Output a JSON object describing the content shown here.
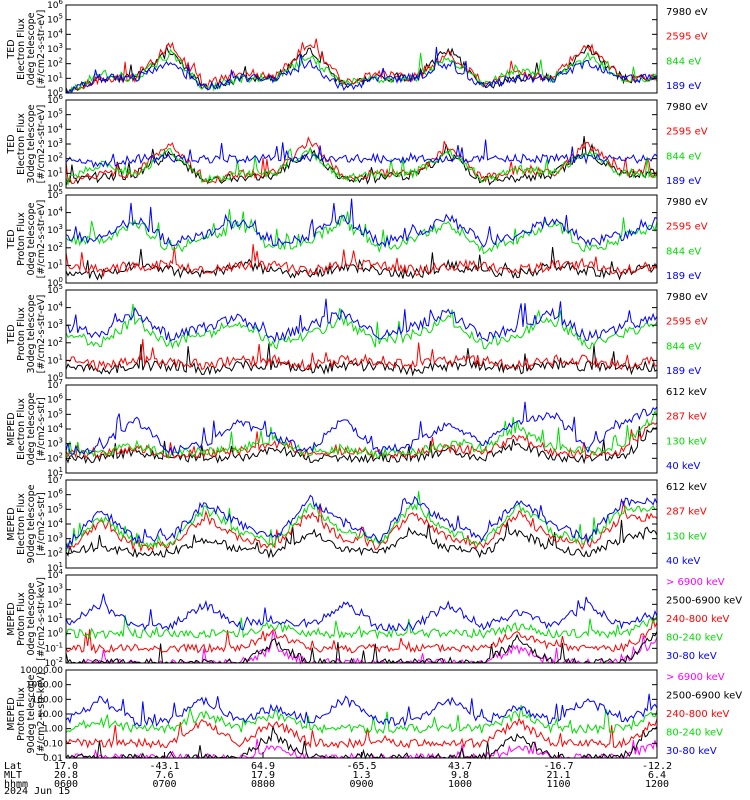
{
  "footer": {
    "date": "2024 Jun 15",
    "row_labels": [
      "Lat",
      "MLT",
      "hhmm"
    ]
  },
  "chart_data": [
    {
      "type": "line",
      "ylabel": [
        "TED",
        "Electron Flux",
        "0deg telescope",
        "[#/cm2-s-str-eV]"
      ],
      "yscale": "log",
      "ylim": [
        1,
        1000000
      ],
      "grid": false,
      "legend_placement": "right",
      "y_ticks": [
        "10^0",
        "10^1",
        "10^2",
        "10^3",
        "10^4",
        "10^5",
        "10^6"
      ],
      "series": [
        {
          "name": "7980 eV",
          "color": "#000000",
          "values": [
            1,
            10,
            10,
            800,
            2,
            10,
            10,
            1000,
            3,
            10,
            10,
            1000,
            3,
            10,
            10,
            1000,
            10,
            10
          ]
        },
        {
          "name": "2595 eV",
          "color": "#ff0000",
          "values": [
            1,
            10,
            10,
            2000,
            3,
            30,
            10,
            3000,
            5,
            20,
            10,
            500,
            5,
            30,
            10,
            2000,
            10,
            10
          ]
        },
        {
          "name": "844 eV",
          "color": "#00dd00",
          "values": [
            1,
            20,
            10,
            500,
            2,
            10,
            10,
            300,
            4,
            10,
            10,
            200,
            5,
            30,
            10,
            300,
            10,
            10
          ]
        },
        {
          "name": "189 eV",
          "color": "#0000ff",
          "values": [
            1,
            10,
            10,
            100,
            2,
            10,
            10,
            100,
            2,
            10,
            10,
            100,
            3,
            10,
            10,
            100,
            10,
            10
          ]
        }
      ]
    },
    {
      "type": "line",
      "ylabel": [
        "TED",
        "Electron Flux",
        "30deg telescope",
        "[#/cm2-s-str-eV]"
      ],
      "yscale": "log",
      "ylim": [
        1,
        1000000
      ],
      "grid": false,
      "legend_placement": "right",
      "y_ticks": [
        "10^0",
        "10^1",
        "10^2",
        "10^3",
        "10^4",
        "10^5",
        "10^6"
      ],
      "series": [
        {
          "name": "7980 eV",
          "color": "#000000",
          "values": [
            3,
            5,
            8,
            200,
            3,
            5,
            8,
            300,
            3,
            5,
            8,
            200,
            3,
            5,
            8,
            300,
            10,
            10
          ]
        },
        {
          "name": "2595 eV",
          "color": "#ff0000",
          "values": [
            3,
            10,
            10,
            1000,
            3,
            10,
            10,
            2000,
            4,
            10,
            10,
            500,
            4,
            20,
            10,
            1000,
            10,
            10
          ]
        },
        {
          "name": "844 eV",
          "color": "#00dd00",
          "values": [
            3,
            50,
            10,
            300,
            3,
            10,
            10,
            300,
            4,
            10,
            10,
            300,
            4,
            20,
            10,
            300,
            10,
            10
          ]
        },
        {
          "name": "189 eV",
          "color": "#0000ff",
          "values": [
            100,
            30,
            100,
            100,
            100,
            100,
            100,
            100,
            100,
            100,
            100,
            100,
            100,
            100,
            100,
            100,
            100,
            100
          ]
        }
      ]
    },
    {
      "type": "line",
      "ylabel": [
        "TED",
        "Proton Flux",
        "0deg telescope",
        "[#/cm2-s-str-eV]"
      ],
      "yscale": "log",
      "ylim": [
        1,
        100000
      ],
      "grid": false,
      "legend_placement": "right",
      "y_ticks": [
        "10^0",
        "10^1",
        "10^2",
        "10^3",
        "10^4",
        "10^5"
      ],
      "series": [
        {
          "name": "7980 eV",
          "color": "#000000",
          "values": [
            5,
            3,
            10,
            5,
            3,
            10,
            5,
            3,
            10,
            5,
            3,
            10,
            5,
            3,
            10,
            5,
            3,
            10
          ]
        },
        {
          "name": "2595 eV",
          "color": "#ff0000",
          "values": [
            10,
            5,
            10,
            10,
            5,
            10,
            10,
            5,
            10,
            10,
            5,
            10,
            10,
            5,
            10,
            10,
            5,
            10
          ]
        },
        {
          "name": "844 eV",
          "color": "#00dd00",
          "values": [
            300,
            200,
            3000,
            80,
            300,
            2000,
            80,
            300,
            3000,
            80,
            300,
            3000,
            80,
            300,
            3000,
            80,
            300,
            2000
          ]
        },
        {
          "name": "189 eV",
          "color": "#0000ff",
          "values": [
            500,
            300,
            5000,
            200,
            500,
            3000,
            200,
            500,
            5000,
            200,
            500,
            5000,
            200,
            500,
            5000,
            200,
            500,
            3000
          ]
        }
      ]
    },
    {
      "type": "line",
      "ylabel": [
        "TED",
        "Proton Flux",
        "30deg telescope",
        "[#/cm2-s-str-eV]"
      ],
      "yscale": "log",
      "ylim": [
        1,
        100000
      ],
      "grid": false,
      "legend_placement": "right",
      "y_ticks": [
        "10^0",
        "10^1",
        "10^2",
        "10^3",
        "10^4",
        "10^5"
      ],
      "series": [
        {
          "name": "7980 eV",
          "color": "#000000",
          "values": [
            5,
            3,
            5,
            5,
            3,
            5,
            5,
            3,
            5,
            5,
            3,
            5,
            5,
            3,
            5,
            5,
            3,
            5
          ]
        },
        {
          "name": "2595 eV",
          "color": "#ff0000",
          "values": [
            10,
            5,
            10,
            10,
            5,
            10,
            10,
            5,
            10,
            10,
            5,
            10,
            10,
            5,
            10,
            10,
            5,
            10
          ]
        },
        {
          "name": "844 eV",
          "color": "#00dd00",
          "values": [
            300,
            100,
            2000,
            80,
            300,
            1500,
            80,
            300,
            2000,
            80,
            300,
            2000,
            80,
            300,
            2000,
            80,
            300,
            1500
          ]
        },
        {
          "name": "189 eV",
          "color": "#0000ff",
          "values": [
            800,
            300,
            5000,
            200,
            800,
            3000,
            200,
            800,
            5000,
            200,
            800,
            5000,
            200,
            800,
            5000,
            200,
            800,
            3000
          ]
        }
      ]
    },
    {
      "type": "line",
      "ylabel": [
        "MEPED",
        "Electron Flux",
        "0deg telescope",
        "[#/cm2-s-str]"
      ],
      "yscale": "log",
      "ylim": [
        10,
        10000000
      ],
      "grid": false,
      "legend_placement": "right",
      "y_ticks": [
        "10^1",
        "10^2",
        "10^3",
        "10^4",
        "10^5",
        "10^6",
        "10^7"
      ],
      "series": [
        {
          "name": "612 keV",
          "color": "#000000",
          "values": [
            100,
            100,
            300,
            100,
            100,
            100,
            500,
            100,
            100,
            100,
            100,
            300,
            100,
            1000,
            100,
            100,
            100,
            10000
          ]
        },
        {
          "name": "287 keV",
          "color": "#ff0000",
          "values": [
            200,
            200,
            500,
            200,
            200,
            300,
            1000,
            200,
            300,
            200,
            200,
            500,
            300,
            3000,
            300,
            200,
            300,
            50000
          ]
        },
        {
          "name": "130 keV",
          "color": "#00dd00",
          "values": [
            200,
            200,
            800,
            200,
            300,
            500,
            2000,
            200,
            500,
            200,
            300,
            800,
            500,
            10000,
            500,
            300,
            500,
            100000
          ]
        },
        {
          "name": "40 keV",
          "color": "#0000ff",
          "values": [
            300,
            500,
            50000,
            300,
            1000,
            30000,
            3000,
            300,
            50000,
            300,
            1000,
            30000,
            1000,
            30000,
            100000,
            500,
            30000,
            300000
          ]
        }
      ]
    },
    {
      "type": "line",
      "ylabel": [
        "MEPED",
        "Electron Flux",
        "90deg telescope",
        "[#/cm2-s-str]"
      ],
      "yscale": "log",
      "ylim": [
        10,
        10000000
      ],
      "grid": false,
      "legend_placement": "right",
      "y_ticks": [
        "10^1",
        "10^2",
        "10^3",
        "10^4",
        "10^5",
        "10^6",
        "10^7"
      ],
      "series": [
        {
          "name": "612 keV",
          "color": "#000000",
          "values": [
            100,
            300,
            100,
            100,
            1000,
            200,
            100,
            3000,
            200,
            100,
            3000,
            200,
            100,
            3000,
            200,
            100,
            1000,
            3000
          ]
        },
        {
          "name": "287 keV",
          "color": "#ff0000",
          "values": [
            200,
            10000,
            300,
            300,
            30000,
            1000,
            300,
            50000,
            1000,
            300,
            50000,
            1000,
            300,
            50000,
            1000,
            300,
            30000,
            30000
          ]
        },
        {
          "name": "130 keV",
          "color": "#00dd00",
          "values": [
            200,
            30000,
            500,
            500,
            100000,
            3000,
            500,
            200000,
            3000,
            500,
            200000,
            3000,
            500,
            200000,
            3000,
            500,
            100000,
            100000
          ]
        },
        {
          "name": "40 keV",
          "color": "#0000ff",
          "values": [
            300,
            100000,
            1000,
            1000,
            300000,
            10000,
            1000,
            500000,
            10000,
            1000,
            500000,
            10000,
            1000,
            500000,
            10000,
            1000,
            300000,
            300000
          ]
        }
      ]
    },
    {
      "type": "line",
      "ylabel": [
        "MEPED",
        "Proton Flux",
        "0deg telescope",
        "[#/cm2-s-str-keV]"
      ],
      "yscale": "log",
      "ylim": [
        0.01,
        10000
      ],
      "grid": false,
      "legend_placement": "right",
      "y_ticks": [
        "10^-2",
        "10^-1",
        "10^0",
        "10^1",
        "10^2",
        "10^3",
        "10^4"
      ],
      "series": [
        {
          "name": "> 6900 keV",
          "color": "#ff00ff",
          "values": [
            0.01,
            0.01,
            0.01,
            0.01,
            0.01,
            0.01,
            0.1,
            0.01,
            0.01,
            0.01,
            0.01,
            0.01,
            0.01,
            0.1,
            0.01,
            0.01,
            0.01,
            0.3
          ]
        },
        {
          "name": "2500-6900 keV",
          "color": "#000000",
          "values": [
            0.01,
            0.01,
            0.01,
            0.01,
            0.01,
            0.01,
            0.3,
            0.01,
            0.01,
            0.01,
            0.01,
            0.01,
            0.01,
            0.3,
            0.01,
            0.01,
            0.01,
            1
          ]
        },
        {
          "name": "240-800 keV",
          "color": "#ff0000",
          "values": [
            0.1,
            0.1,
            0.1,
            0.1,
            0.1,
            0.1,
            1,
            0.1,
            0.1,
            0.1,
            0.1,
            0.1,
            0.1,
            1,
            0.1,
            0.1,
            0.1,
            3
          ]
        },
        {
          "name": "80-240 keV",
          "color": "#00dd00",
          "values": [
            1,
            1,
            1,
            1,
            1,
            1,
            3,
            1,
            1,
            1,
            1,
            1,
            1,
            3,
            1,
            1,
            1,
            10
          ]
        },
        {
          "name": "30-80 keV",
          "color": "#0000ff",
          "values": [
            3,
            100,
            3,
            3,
            100,
            3,
            10,
            3,
            100,
            3,
            3,
            100,
            3,
            30,
            3,
            100,
            3,
            30
          ]
        }
      ]
    },
    {
      "type": "line",
      "ylabel": [
        "MEPED",
        "Proton Flux",
        "90deg telescope",
        "[#/cm2-s-str-keV]"
      ],
      "yscale": "log",
      "ylim": [
        0.01,
        10000
      ],
      "grid": false,
      "legend_placement": "right",
      "y_ticks": [
        "0.01",
        "0.10",
        "1.00",
        "10.00",
        "100.00",
        "1000.00",
        "10000.00"
      ],
      "series": [
        {
          "name": "> 6900 keV",
          "color": "#ff00ff",
          "values": [
            0.01,
            0.01,
            0.01,
            0.01,
            0.01,
            0.01,
            0.05,
            0.01,
            0.01,
            0.01,
            0.01,
            0.01,
            0.01,
            0.05,
            0.01,
            0.01,
            0.01,
            0.1
          ]
        },
        {
          "name": "2500-6900 keV",
          "color": "#000000",
          "values": [
            0.01,
            0.01,
            0.01,
            0.01,
            0.01,
            0.01,
            0.3,
            0.01,
            0.01,
            0.01,
            0.01,
            0.01,
            0.01,
            0.3,
            0.01,
            0.01,
            0.01,
            1
          ]
        },
        {
          "name": "240-800 keV",
          "color": "#ff0000",
          "values": [
            0.1,
            0.1,
            0.1,
            0.1,
            3,
            0.1,
            3,
            0.1,
            0.1,
            0.1,
            0.1,
            0.1,
            0.1,
            3,
            0.1,
            0.1,
            0.1,
            3
          ]
        },
        {
          "name": "80-240 keV",
          "color": "#00dd00",
          "values": [
            1,
            3,
            1,
            1,
            10,
            1,
            10,
            1,
            1,
            1,
            1,
            1,
            1,
            10,
            1,
            1,
            1,
            10
          ]
        },
        {
          "name": "30-80 keV",
          "color": "#0000ff",
          "values": [
            3,
            100,
            3,
            3,
            100,
            3,
            30,
            3,
            100,
            3,
            3,
            100,
            3,
            30,
            3,
            100,
            3,
            30
          ]
        }
      ]
    }
  ],
  "x_axis": {
    "Lat": [
      "17.0",
      "-43.1",
      "64.9",
      "-65.5",
      "43.7",
      "-16.7",
      "-12.2"
    ],
    "MLT": [
      "20.8",
      "7.6",
      "17.9",
      "1.3",
      "9.8",
      "21.1",
      "6.4"
    ],
    "hhmm": [
      "0600",
      "0700",
      "0800",
      "0900",
      "1000",
      "1100",
      "1200"
    ]
  }
}
